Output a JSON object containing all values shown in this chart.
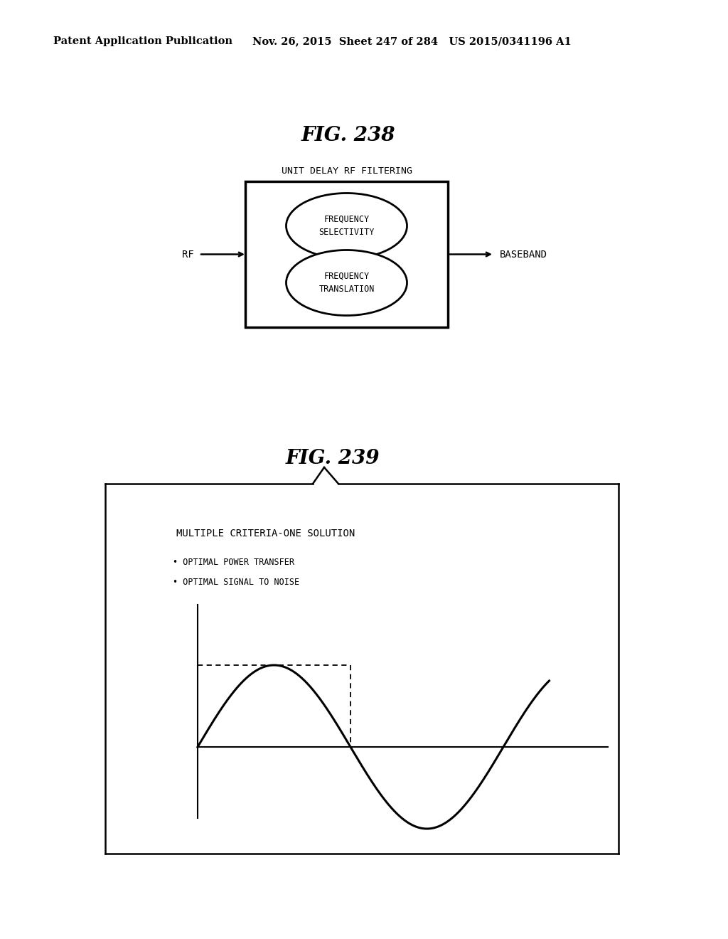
{
  "bg_color": "#ffffff",
  "header_left": "Patent Application Publication",
  "header_right": "Nov. 26, 2015  Sheet 247 of 284   US 2015/0341196 A1",
  "fig238_title": "FIG. 238",
  "fig239_title": "FIG. 239",
  "fig238_label_top": "UNIT DELAY RF FILTERING",
  "fig238_label_rf": "RF",
  "fig238_label_baseband": "BASEBAND",
  "fig238_ellipse1_text": "FREQUENCY\nSELECTIVITY",
  "fig238_ellipse2_text": "FREQUENCY\nTRANSLATION",
  "fig239_title_text": "MULTIPLE CRITERIA-ONE SOLUTION",
  "fig239_bullet1": "• OPTIMAL POWER TRANSFER",
  "fig239_bullet2": "• OPTIMAL SIGNAL TO NOISE"
}
